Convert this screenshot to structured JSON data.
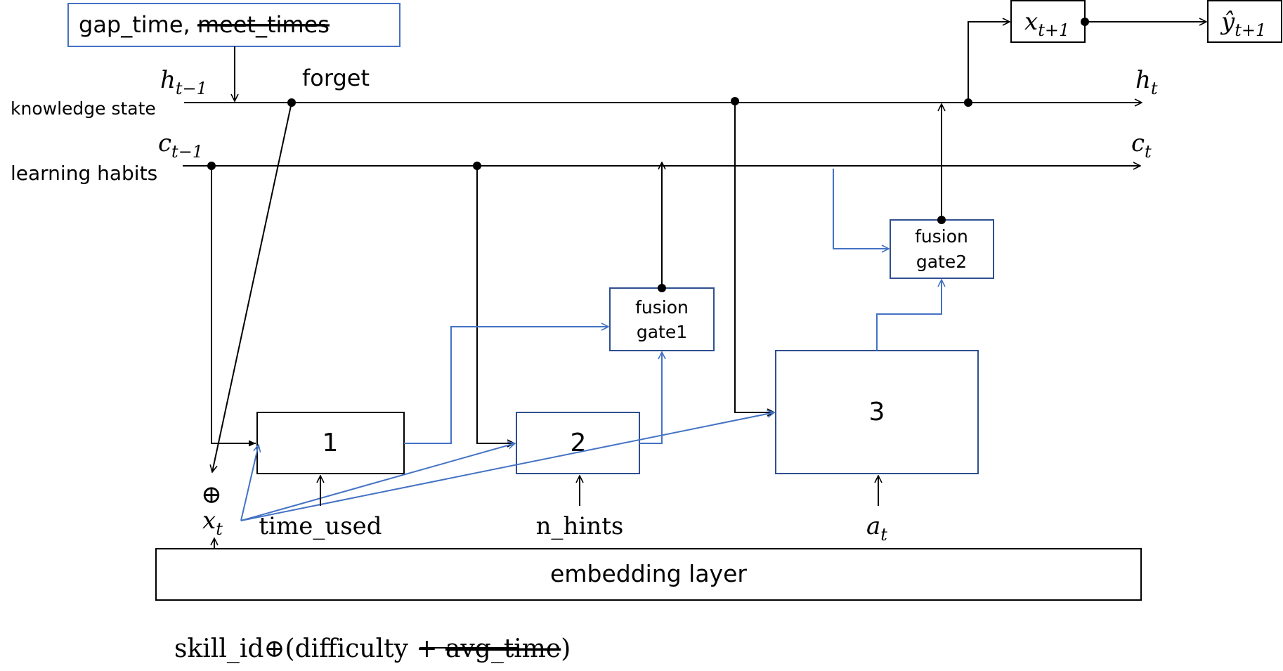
{
  "input_box": {
    "main": "gap_time, ",
    "struck": "meet_times"
  },
  "lines": {
    "knowledge": {
      "label": "knowledge state",
      "in": "h",
      "in_sub": "t−1",
      "out": "h",
      "out_sub": "t"
    },
    "habits": {
      "label": "learning habits",
      "in": "c",
      "in_sub": "t−1",
      "out": "c",
      "out_sub": "t"
    }
  },
  "forget_label": "forget",
  "blocks": {
    "b1": "1",
    "b2": "2",
    "b3": "3"
  },
  "fusion1": {
    "line1": "fusion",
    "line2": "gate1"
  },
  "fusion2": {
    "line1": "fusion",
    "line2": "gate2"
  },
  "next_x": {
    "base": "x",
    "sub": "t+1"
  },
  "next_y": {
    "base": "ŷ",
    "sub": "t+1"
  },
  "combine_symbol": "⊕",
  "x_t": {
    "base": "x",
    "sub": "t"
  },
  "feature_labels": {
    "time_used": "time_used",
    "n_hints": "n_hints",
    "a_t_base": "a",
    "a_t_sub": "t"
  },
  "embedding_label": "embedding layer",
  "bottom_formula": {
    "prefix": "skill_id⊕(difficulty + ",
    "struck": "avg_time",
    "suffix": ")"
  },
  "colors": {
    "accent_blue": "#4472c4",
    "box_blue": "#2f4f8f",
    "line": "#000000"
  }
}
